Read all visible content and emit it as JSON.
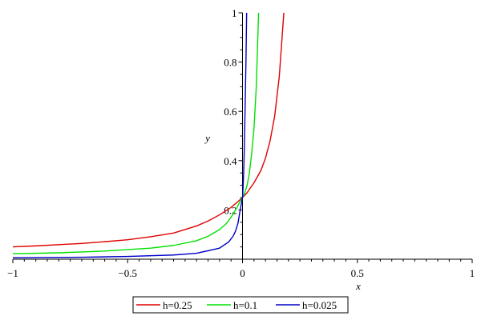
{
  "chart_data": {
    "type": "line",
    "title": "",
    "xlabel": "x",
    "ylabel": "y",
    "xlim": [
      -1,
      1
    ],
    "ylim": [
      0,
      1
    ],
    "x_ticks": [
      -1,
      -0.5,
      0,
      0.5,
      1
    ],
    "x_tick_labels": [
      "−1",
      "−0.5",
      "0",
      "0.5",
      "1"
    ],
    "y_ticks": [
      0.2,
      0.4,
      0.6,
      0.8,
      1
    ],
    "y_tick_labels": [
      "0.2",
      "0.4",
      "0.6",
      "0.8",
      "1"
    ],
    "grid": false,
    "legend_position": "bottom-center",
    "series": [
      {
        "name": "h=0.25",
        "color": "#e00000",
        "x": [
          -1,
          -0.9,
          -0.8,
          -0.7,
          -0.6,
          -0.5,
          -0.4,
          -0.3,
          -0.2,
          -0.15,
          -0.1,
          -0.05,
          0,
          0.02,
          0.05,
          0.08,
          0.1,
          0.12,
          0.14,
          0.16,
          0.18
        ],
        "y": [
          0.05,
          0.054,
          0.059,
          0.064,
          0.071,
          0.079,
          0.091,
          0.106,
          0.135,
          0.155,
          0.18,
          0.21,
          0.25,
          0.27,
          0.31,
          0.36,
          0.41,
          0.48,
          0.58,
          0.74,
          1.0
        ]
      },
      {
        "name": "h=0.1",
        "color": "#00e000",
        "x": [
          -1,
          -0.8,
          -0.6,
          -0.4,
          -0.3,
          -0.2,
          -0.15,
          -0.1,
          -0.07,
          -0.05,
          -0.03,
          -0.01,
          0,
          0.01,
          0.02,
          0.03,
          0.04,
          0.05,
          0.06,
          0.07
        ],
        "y": [
          0.022,
          0.026,
          0.033,
          0.045,
          0.056,
          0.075,
          0.093,
          0.12,
          0.145,
          0.17,
          0.2,
          0.235,
          0.25,
          0.27,
          0.3,
          0.35,
          0.43,
          0.53,
          0.7,
          1.0
        ]
      },
      {
        "name": "h=0.025",
        "color": "#0000c8",
        "x": [
          -1,
          -0.7,
          -0.5,
          -0.3,
          -0.2,
          -0.1,
          -0.06,
          -0.04,
          -0.03,
          -0.02,
          -0.01,
          -0.005,
          0,
          0.003,
          0.006,
          0.009,
          0.012,
          0.015,
          0.018
        ],
        "y": [
          0.006,
          0.008,
          0.011,
          0.017,
          0.024,
          0.045,
          0.07,
          0.095,
          0.115,
          0.145,
          0.2,
          0.225,
          0.25,
          0.3,
          0.38,
          0.5,
          0.65,
          0.8,
          1.0
        ]
      }
    ]
  }
}
